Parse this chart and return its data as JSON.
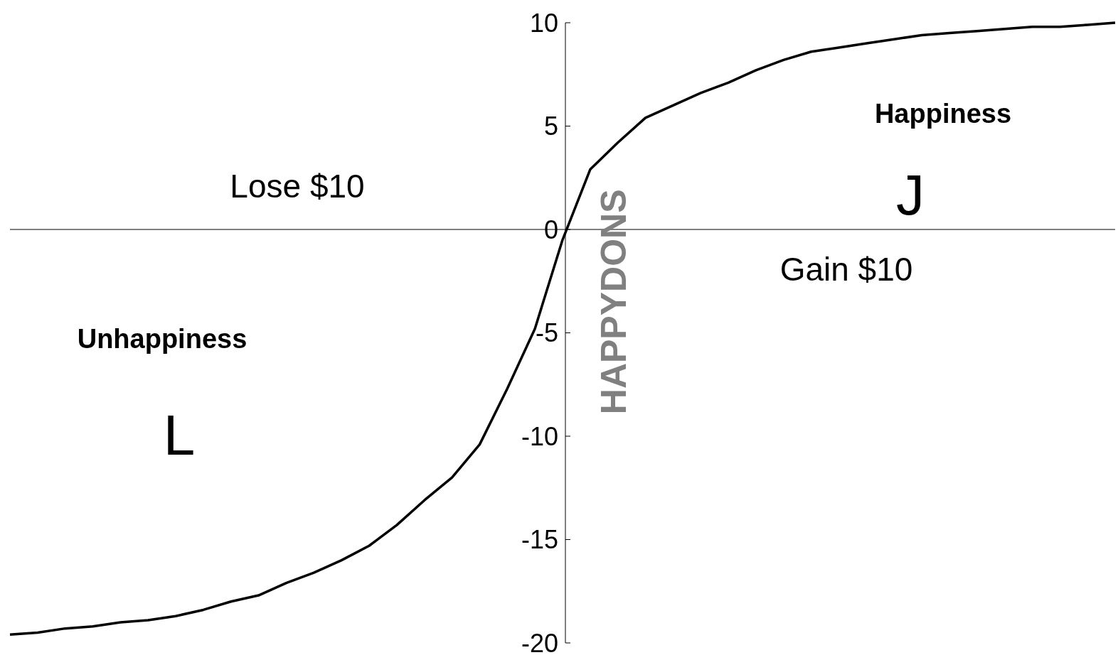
{
  "chart_data": {
    "type": "line",
    "ylabel": "HAPPYDONS",
    "categories": [
      null,
      null,
      null,
      null,
      null,
      null,
      null,
      null,
      null,
      null,
      null,
      null,
      null,
      null,
      null,
      null,
      null,
      null,
      null,
      null,
      null,
      null,
      null,
      null,
      null,
      null,
      null,
      null,
      null,
      null,
      null,
      null,
      null,
      null,
      null,
      null,
      null,
      null,
      null,
      null,
      null
    ],
    "series": [
      {
        "color": "#000000",
        "values": [
          -19.6,
          -19.5,
          -19.3,
          -19.2,
          -19.0,
          -18.9,
          -18.7,
          -18.4,
          -18.0,
          -17.7,
          -17.1,
          -16.6,
          -16.0,
          -15.3,
          -14.3,
          -13.1,
          -12.0,
          -10.4,
          -7.7,
          -4.8,
          -0.5,
          2.9,
          4.2,
          5.4,
          6.0,
          6.6,
          7.1,
          7.7,
          8.2,
          8.6,
          8.8,
          9.0,
          9.2,
          9.4,
          9.5,
          9.6,
          9.7,
          9.8,
          9.8,
          9.9,
          10.0
        ]
      }
    ],
    "ylim": [
      -20,
      10
    ],
    "yticks": [
      -20,
      -15,
      -10,
      -5,
      0,
      5,
      10
    ],
    "marker": "none",
    "line_style": "solid",
    "annotations": [
      "Lose $10",
      "Gain $10",
      "Unhappiness",
      "L",
      "Happiness",
      "J"
    ]
  }
}
